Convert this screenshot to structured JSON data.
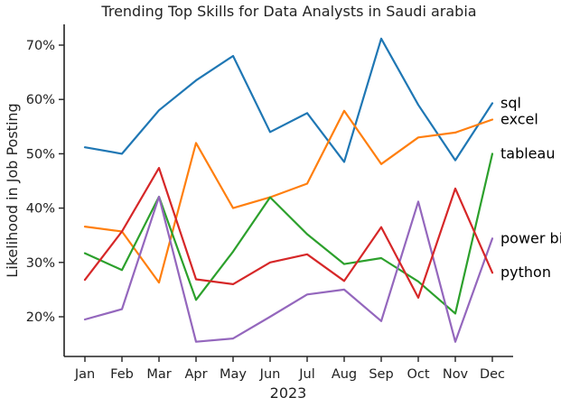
{
  "chart_data": {
    "type": "line",
    "title": "Trending Top Skills for Data Analysts in Saudi arabia",
    "xlabel": "2023",
    "ylabel": "Likelihood in Job Posting",
    "categories": [
      "Jan",
      "Feb",
      "Mar",
      "Apr",
      "May",
      "Jun",
      "Jul",
      "Aug",
      "Sep",
      "Oct",
      "Nov",
      "Dec"
    ],
    "ylim": [
      12.5,
      74
    ],
    "yticks": [
      20,
      30,
      40,
      50,
      60,
      70
    ],
    "ytick_labels": [
      "20%",
      "30%",
      "40%",
      "50%",
      "60%",
      "70%"
    ],
    "grid": false,
    "legend": "none",
    "series": [
      {
        "name": "sql",
        "color": "#1f77b4",
        "values": [
          51.2,
          50.0,
          58.0,
          63.5,
          68.0,
          54.0,
          57.5,
          48.5,
          71.2,
          59.0,
          48.8,
          59.3
        ]
      },
      {
        "name": "excel",
        "color": "#ff7f0e",
        "values": [
          36.6,
          35.7,
          26.3,
          52.0,
          40.0,
          42.0,
          44.5,
          57.9,
          48.1,
          53.0,
          53.9,
          56.3
        ]
      },
      {
        "name": "tableau",
        "color": "#2ca02c",
        "values": [
          31.7,
          28.6,
          42.1,
          23.1,
          32.0,
          42.0,
          35.2,
          29.7,
          30.8,
          26.5,
          20.6,
          50.0
        ]
      },
      {
        "name": "power bi",
        "color": "#9467bd",
        "values": [
          19.5,
          21.4,
          42.1,
          15.4,
          16.0,
          20.0,
          24.1,
          25.0,
          19.2,
          41.2,
          15.4,
          34.4
        ]
      },
      {
        "name": "python",
        "color": "#d62728",
        "values": [
          26.8,
          35.7,
          47.4,
          26.9,
          26.0,
          30.0,
          31.5,
          26.6,
          36.5,
          23.5,
          43.6,
          28.1
        ]
      }
    ],
    "series_label_y": [
      59.3,
      56.3,
      50.0,
      34.4,
      28.1
    ]
  }
}
